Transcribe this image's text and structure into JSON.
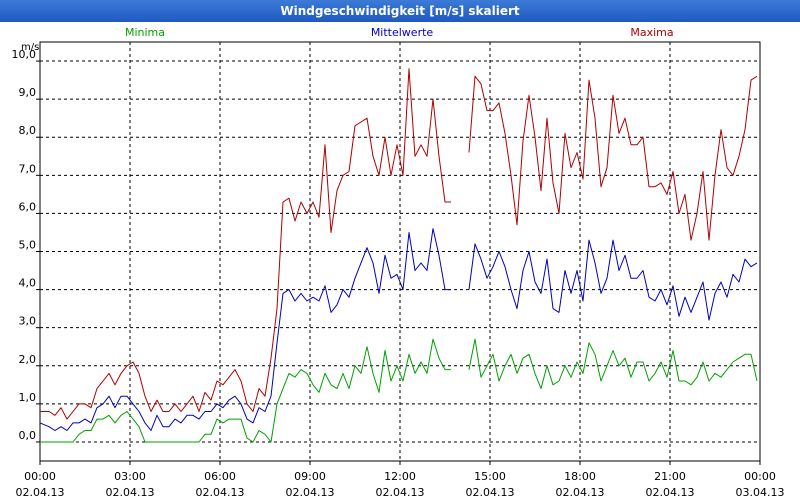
{
  "window": {
    "title": "Windgeschwindigkeit [m/s] skaliert"
  },
  "colors": {
    "minima": "#00a000",
    "mittelwerte": "#0000c0",
    "maxima": "#b00000",
    "grid": "#000000",
    "plot_bg": "#ffffff"
  },
  "chart_data": {
    "type": "line",
    "title": "Windgeschwindigkeit [m/s] skaliert",
    "ylabel": "m/s",
    "xlabel": "",
    "ylim": [
      -0.5,
      10.5
    ],
    "y_ticks": [
      "0,0",
      "1,0",
      "2,0",
      "3,0",
      "4,0",
      "5,0",
      "6,0",
      "7,0",
      "8,0",
      "9,0",
      "10,0"
    ],
    "xlim": [
      0,
      24
    ],
    "x_ticks": [
      {
        "time": "00:00",
        "date": "02.04.13"
      },
      {
        "time": "03:00",
        "date": "02.04.13"
      },
      {
        "time": "06:00",
        "date": "02.04.13"
      },
      {
        "time": "09:00",
        "date": "02.04.13"
      },
      {
        "time": "12:00",
        "date": "02.04.13"
      },
      {
        "time": "15:00",
        "date": "02.04.13"
      },
      {
        "time": "18:00",
        "date": "02.04.13"
      },
      {
        "time": "21:00",
        "date": "02.04.13"
      },
      {
        "time": "00:00",
        "date": "03.04.13"
      }
    ],
    "legend": [
      "Minima",
      "Mittelwerte",
      "Maxima"
    ],
    "series": [
      {
        "name": "Maxima",
        "segments": [
          {
            "x": [
              0.0,
              0.3,
              0.5,
              0.7,
              0.9,
              1.1,
              1.3,
              1.5,
              1.7,
              1.9,
              2.1,
              2.3,
              2.5,
              2.7,
              2.9,
              3.1,
              3.3,
              3.5,
              3.7,
              3.9,
              4.1,
              4.3,
              4.5,
              4.7,
              4.9,
              5.1,
              5.3,
              5.5,
              5.7,
              5.9,
              6.1,
              6.3,
              6.5,
              6.7,
              6.9,
              7.1,
              7.3,
              7.5,
              7.7,
              7.9,
              8.1,
              8.3,
              8.5,
              8.7,
              8.9,
              9.1,
              9.3,
              9.5,
              9.7,
              9.9,
              10.1,
              10.3,
              10.5,
              10.7,
              10.9,
              11.1,
              11.3,
              11.5,
              11.7,
              11.9,
              12.1,
              12.3,
              12.5,
              12.7,
              12.9,
              13.1,
              13.3,
              13.5,
              13.7
            ],
            "y": [
              0.8,
              0.8,
              0.7,
              0.9,
              0.6,
              0.8,
              1.0,
              1.0,
              0.9,
              1.4,
              1.6,
              1.8,
              1.5,
              1.8,
              2.0,
              2.1,
              1.8,
              1.2,
              0.8,
              1.1,
              0.8,
              0.8,
              1.0,
              0.8,
              1.0,
              1.2,
              0.8,
              1.3,
              1.1,
              1.6,
              1.5,
              1.7,
              1.9,
              1.6,
              1.0,
              0.8,
              1.4,
              1.2,
              2.2,
              3.5,
              6.3,
              6.4,
              5.8,
              6.3,
              6.0,
              6.3,
              5.9,
              7.8,
              5.5,
              6.6,
              7.0,
              7.1,
              8.3,
              8.4,
              8.5,
              7.5,
              7.0,
              8.0,
              7.0,
              7.8,
              7.0,
              9.8,
              7.5,
              7.8,
              7.5,
              9.0,
              7.5,
              6.3,
              6.3
            ]
          },
          {
            "x": [
              14.3,
              14.5,
              14.7,
              14.9,
              15.1,
              15.3,
              15.5,
              15.7,
              15.9,
              16.1,
              16.3,
              16.5,
              16.7,
              16.9,
              17.1,
              17.3,
              17.5,
              17.7,
              17.9,
              18.1,
              18.3,
              18.5,
              18.7,
              18.9,
              19.1,
              19.3,
              19.5,
              19.7,
              19.9,
              20.1,
              20.3,
              20.5,
              20.7,
              20.9,
              21.1,
              21.3,
              21.5,
              21.7,
              21.9,
              22.1,
              22.3,
              22.5,
              22.7,
              22.9,
              23.1,
              23.3,
              23.5,
              23.7,
              23.9
            ],
            "y": [
              7.6,
              9.6,
              9.4,
              8.7,
              8.7,
              8.9,
              8.1,
              7.0,
              5.7,
              7.9,
              9.1,
              8.0,
              6.6,
              8.5,
              6.8,
              6.0,
              8.1,
              7.2,
              7.6,
              6.9,
              9.5,
              8.5,
              6.7,
              7.2,
              9.1,
              8.1,
              8.5,
              7.8,
              7.8,
              8.0,
              6.7,
              6.7,
              6.8,
              6.5,
              7.1,
              6.0,
              6.5,
              5.3,
              6.0,
              7.1,
              5.3,
              7.0,
              8.2,
              7.2,
              7.0,
              7.5,
              8.2,
              9.5,
              9.6
            ]
          }
        ]
      },
      {
        "name": "Mittelwerte",
        "segments": [
          {
            "x": [
              0.0,
              0.3,
              0.5,
              0.7,
              0.9,
              1.1,
              1.3,
              1.5,
              1.7,
              1.9,
              2.1,
              2.3,
              2.5,
              2.7,
              2.9,
              3.1,
              3.3,
              3.5,
              3.7,
              3.9,
              4.1,
              4.3,
              4.5,
              4.7,
              4.9,
              5.1,
              5.3,
              5.5,
              5.7,
              5.9,
              6.1,
              6.3,
              6.5,
              6.7,
              6.9,
              7.1,
              7.3,
              7.5,
              7.7,
              7.9,
              8.1,
              8.3,
              8.5,
              8.7,
              8.9,
              9.1,
              9.3,
              9.5,
              9.7,
              9.9,
              10.1,
              10.3,
              10.5,
              10.7,
              10.9,
              11.1,
              11.3,
              11.5,
              11.7,
              11.9,
              12.1,
              12.3,
              12.5,
              12.7,
              12.9,
              13.1,
              13.3,
              13.5,
              13.7
            ],
            "y": [
              0.5,
              0.4,
              0.3,
              0.4,
              0.3,
              0.5,
              0.5,
              0.6,
              0.5,
              0.9,
              1.0,
              1.2,
              0.9,
              1.2,
              1.2,
              1.0,
              0.8,
              0.5,
              0.3,
              0.7,
              0.4,
              0.4,
              0.6,
              0.5,
              0.7,
              0.7,
              0.6,
              0.8,
              0.8,
              1.0,
              0.9,
              1.1,
              1.2,
              1.0,
              0.6,
              0.5,
              0.9,
              0.8,
              1.2,
              2.6,
              3.9,
              4.0,
              3.7,
              3.9,
              3.7,
              3.8,
              3.7,
              4.1,
              3.4,
              3.6,
              4.0,
              3.8,
              4.3,
              4.7,
              5.1,
              4.7,
              3.9,
              4.9,
              4.3,
              4.4,
              4.0,
              5.5,
              4.5,
              4.7,
              4.5,
              5.6,
              4.9,
              4.0,
              4.0
            ]
          },
          {
            "x": [
              14.3,
              14.5,
              14.7,
              14.9,
              15.1,
              15.3,
              15.5,
              15.7,
              15.9,
              16.1,
              16.3,
              16.5,
              16.7,
              16.9,
              17.1,
              17.3,
              17.5,
              17.7,
              17.9,
              18.1,
              18.3,
              18.5,
              18.7,
              18.9,
              19.1,
              19.3,
              19.5,
              19.7,
              19.9,
              20.1,
              20.3,
              20.5,
              20.7,
              20.9,
              21.1,
              21.3,
              21.5,
              21.7,
              21.9,
              22.1,
              22.3,
              22.5,
              22.7,
              22.9,
              23.1,
              23.3,
              23.5,
              23.7,
              23.9
            ],
            "y": [
              4.0,
              5.2,
              4.8,
              4.3,
              4.6,
              5.0,
              4.6,
              4.0,
              3.5,
              4.5,
              5.0,
              4.2,
              3.9,
              4.8,
              3.5,
              3.4,
              4.5,
              3.9,
              4.5,
              3.7,
              5.3,
              4.7,
              3.9,
              4.3,
              5.3,
              4.5,
              4.9,
              4.3,
              4.3,
              4.5,
              3.8,
              3.7,
              4.0,
              3.6,
              4.1,
              3.3,
              3.8,
              3.4,
              3.8,
              4.2,
              3.2,
              3.9,
              4.2,
              3.8,
              4.4,
              4.2,
              4.8,
              4.6,
              4.7
            ]
          }
        ]
      },
      {
        "name": "Minima",
        "segments": [
          {
            "x": [
              0.0,
              0.3,
              0.5,
              0.7,
              0.9,
              1.1,
              1.3,
              1.5,
              1.7,
              1.9,
              2.1,
              2.3,
              2.5,
              2.7,
              2.9,
              3.1,
              3.3,
              3.5,
              3.7,
              3.9,
              4.1,
              4.3,
              4.5,
              4.7,
              4.9,
              5.1,
              5.3,
              5.5,
              5.7,
              5.9,
              6.1,
              6.3,
              6.5,
              6.7,
              6.9,
              7.1,
              7.3,
              7.5,
              7.7,
              7.9,
              8.1,
              8.3,
              8.5,
              8.7,
              8.9,
              9.1,
              9.3,
              9.5,
              9.7,
              9.9,
              10.1,
              10.3,
              10.5,
              10.7,
              10.9,
              11.1,
              11.3,
              11.5,
              11.7,
              11.9,
              12.1,
              12.3,
              12.5,
              12.7,
              12.9,
              13.1,
              13.3,
              13.5,
              13.7
            ],
            "y": [
              0.0,
              0.0,
              0.0,
              0.0,
              0.0,
              0.0,
              0.2,
              0.3,
              0.3,
              0.6,
              0.6,
              0.7,
              0.5,
              0.7,
              0.8,
              0.6,
              0.4,
              0.0,
              0.0,
              0.0,
              0.0,
              0.0,
              0.0,
              0.0,
              0.0,
              0.0,
              0.0,
              0.2,
              0.2,
              0.6,
              0.5,
              0.6,
              0.6,
              0.6,
              0.1,
              0.0,
              0.3,
              0.2,
              0.0,
              1.0,
              1.4,
              1.8,
              1.7,
              1.9,
              1.8,
              1.5,
              1.3,
              1.8,
              1.5,
              1.4,
              1.8,
              1.4,
              2.0,
              1.8,
              2.5,
              1.8,
              1.3,
              2.4,
              1.6,
              2.0,
              1.6,
              2.3,
              1.8,
              2.1,
              1.8,
              2.7,
              2.2,
              1.9,
              1.9
            ]
          },
          {
            "x": [
              14.3,
              14.5,
              14.7,
              14.9,
              15.1,
              15.3,
              15.5,
              15.7,
              15.9,
              16.1,
              16.3,
              16.5,
              16.7,
              16.9,
              17.1,
              17.3,
              17.5,
              17.7,
              17.9,
              18.1,
              18.3,
              18.5,
              18.7,
              18.9,
              19.1,
              19.3,
              19.5,
              19.7,
              19.9,
              20.1,
              20.3,
              20.5,
              20.7,
              20.9,
              21.1,
              21.3,
              21.5,
              21.7,
              21.9,
              22.1,
              22.3,
              22.5,
              22.7,
              22.9,
              23.1,
              23.3,
              23.5,
              23.7,
              23.9
            ],
            "y": [
              1.9,
              2.7,
              1.7,
              2.0,
              2.3,
              1.6,
              2.0,
              2.3,
              1.8,
              2.2,
              2.3,
              1.8,
              1.4,
              2.0,
              1.5,
              1.6,
              2.0,
              1.7,
              2.1,
              1.8,
              2.6,
              2.3,
              1.6,
              2.0,
              2.4,
              2.0,
              2.2,
              1.7,
              2.1,
              2.1,
              1.6,
              1.8,
              2.1,
              1.7,
              2.4,
              1.6,
              1.6,
              1.5,
              1.7,
              2.1,
              1.6,
              1.8,
              1.7,
              1.9,
              2.1,
              2.2,
              2.3,
              2.3,
              1.6
            ]
          }
        ]
      }
    ]
  }
}
